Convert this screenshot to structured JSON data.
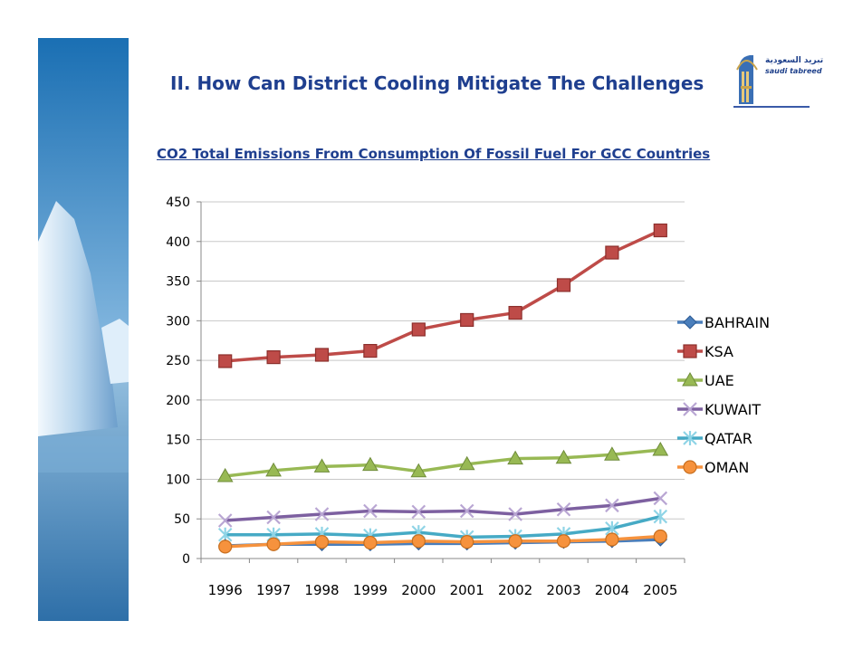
{
  "slide": {
    "title": "II. How Can District Cooling Mitigate The Challenges",
    "chart_title": "CO2 Total Emissions From Consumption Of Fossil Fuel For GCC Countries"
  },
  "logo": {
    "text_ar": "تبريد السعودية",
    "text_en": "saudi tabreed"
  },
  "chart_data": {
    "type": "line",
    "title": "CO2 Total Emissions From Consumption Of Fossil Fuel For GCC Countries",
    "xlabel": "",
    "ylabel": "",
    "x": [
      "1996",
      "1997",
      "1998",
      "1999",
      "2000",
      "2001",
      "2002",
      "2003",
      "2004",
      "2005"
    ],
    "ylim": [
      0,
      450
    ],
    "yticks": [
      0,
      50,
      100,
      150,
      200,
      250,
      300,
      350,
      400,
      450
    ],
    "grid": "horizontal",
    "legend_placement": "right",
    "series": [
      {
        "name": "BAHRAIN",
        "color": "#4a7ebb",
        "marker": "diamond",
        "values": [
          16,
          18,
          18,
          18,
          19,
          19,
          20,
          21,
          22,
          24
        ]
      },
      {
        "name": "KSA",
        "color": "#be4b48",
        "marker": "square",
        "values": [
          249,
          254,
          257,
          262,
          289,
          301,
          310,
          345,
          386,
          414
        ]
      },
      {
        "name": "UAE",
        "color": "#98b954",
        "marker": "triangle",
        "values": [
          104,
          111,
          116,
          118,
          110,
          119,
          126,
          127,
          131,
          137
        ]
      },
      {
        "name": "KUWAIT",
        "color": "#7d60a0",
        "marker": "x",
        "values": [
          48,
          52,
          56,
          60,
          59,
          60,
          56,
          62,
          67,
          76
        ]
      },
      {
        "name": "QATAR",
        "color": "#46aac5",
        "marker": "star",
        "values": [
          30,
          30,
          31,
          29,
          33,
          27,
          28,
          31,
          38,
          53
        ]
      },
      {
        "name": "OMAN",
        "color": "#f6923d",
        "marker": "circle",
        "values": [
          15,
          18,
          21,
          20,
          22,
          21,
          22,
          22,
          24,
          28
        ]
      }
    ]
  }
}
